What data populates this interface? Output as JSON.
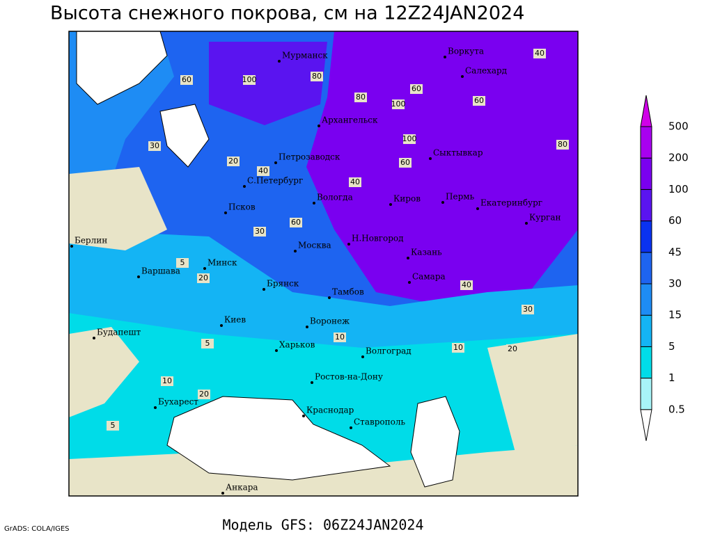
{
  "title": "Высота снежного покрова, см на 12Z24JAN2024",
  "subtitle": "Модель GFS: 06Z24JAN2024",
  "credit": "GrADS: COLA/IGES",
  "legend": {
    "levels": [
      0.5,
      1,
      5,
      15,
      30,
      45,
      60,
      100,
      200,
      500
    ],
    "colors": [
      "#ffffff",
      "#a8f4f8",
      "#00dce8",
      "#14b4f4",
      "#1e8cf4",
      "#1e64f0",
      "#0a32f0",
      "#5a14f0",
      "#7a00f0",
      "#a800f0",
      "#d000e8"
    ]
  },
  "cities": [
    "Мурманск",
    "Воркута",
    "Салехард",
    "Архангельск",
    "Петрозаводск",
    "Сыктывкар",
    "С.Петербург",
    "Вологда",
    "Киров",
    "Пермь",
    "Екатеринбург",
    "Курган",
    "Псков",
    "Берлин",
    "Москва",
    "Н.Новгород",
    "Казань",
    "Минск",
    "Варшава",
    "Самара",
    "Брянск",
    "Тамбов",
    "Киев",
    "Воронеж",
    "Будапешт",
    "Харьков",
    "Волгоград",
    "Ростов-на-Дону",
    "Бухарест",
    "Краснодар",
    "Ставрополь",
    "Анкара"
  ],
  "contour_labels": [
    60,
    100,
    80,
    40,
    60,
    80,
    100,
    60,
    20,
    30,
    40,
    80,
    60,
    100,
    60,
    40,
    30,
    20,
    5,
    10,
    5,
    20,
    10,
    40,
    30,
    5,
    10,
    20
  ]
}
